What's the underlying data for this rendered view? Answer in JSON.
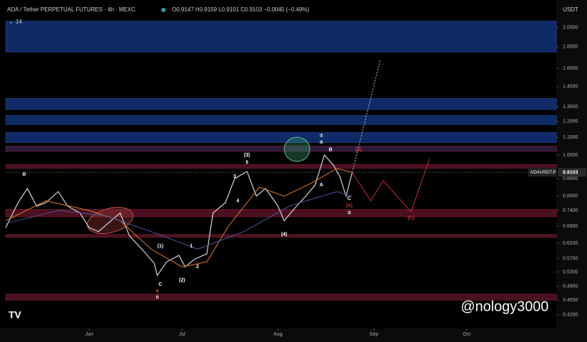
{
  "chart_data": {
    "type": "line",
    "title": "ADA / Tether PERPETUAL FUTURES · 4h · MEXC",
    "ohlc_text": "O0.9147 H0.9159 L0.9101 C0.9103 −0.0045 (−0.49%)",
    "indicator_count": "14",
    "currency": "USDT",
    "symbol": "ADAUSDT.P",
    "last_price": {
      "value": 0.9103,
      "label": "0.9103"
    },
    "watermark": "@nology3000",
    "log_scale": true,
    "xlim": [
      -27,
      151
    ],
    "xticks": [
      {
        "value": 0,
        "label": "Jun"
      },
      {
        "value": 30,
        "label": "Jul"
      },
      {
        "value": 61,
        "label": "Aug"
      },
      {
        "value": 92,
        "label": "Sep"
      },
      {
        "value": 122,
        "label": "Oct"
      }
    ],
    "ylim": [
      0.39,
      2.25
    ],
    "yticks": [
      {
        "value": 2.0,
        "label": "2.0000"
      },
      {
        "value": 1.8,
        "label": "1.8000"
      },
      {
        "value": 1.6,
        "label": "1.6000"
      },
      {
        "value": 1.45,
        "label": "1.4500"
      },
      {
        "value": 1.3,
        "label": "1.3000"
      },
      {
        "value": 1.2,
        "label": "1.2000"
      },
      {
        "value": 1.1,
        "label": "1.1000"
      },
      {
        "value": 1.0,
        "label": "1.0000"
      },
      {
        "value": 0.88,
        "label": "0.8800"
      },
      {
        "value": 0.8,
        "label": "0.8000"
      },
      {
        "value": 0.74,
        "label": "0.7400"
      },
      {
        "value": 0.68,
        "label": "0.6800"
      },
      {
        "value": 0.62,
        "label": "0.6200"
      },
      {
        "value": 0.57,
        "label": "0.5700"
      },
      {
        "value": 0.53,
        "label": "0.5300"
      },
      {
        "value": 0.49,
        "label": "0.4900"
      },
      {
        "value": 0.455,
        "label": "0.4550"
      },
      {
        "value": 0.42,
        "label": "0.4200"
      }
    ],
    "zones": [
      {
        "low": 1.75,
        "high": 2.07,
        "color": "#0f2a66"
      },
      {
        "low": 1.28,
        "high": 1.36,
        "color": "#0f2a66"
      },
      {
        "low": 1.18,
        "high": 1.24,
        "color": "#0f2a66"
      },
      {
        "low": 1.07,
        "high": 1.13,
        "color": "#0f2a66"
      },
      {
        "low": 1.02,
        "high": 1.05,
        "color": "#2a1a3a"
      },
      {
        "low": 0.93,
        "high": 0.95,
        "color": "#4a1020"
      },
      {
        "low": 0.715,
        "high": 0.745,
        "color": "#4a1020"
      },
      {
        "low": 0.64,
        "high": 0.65,
        "color": "#4a1020"
      },
      {
        "low": 0.455,
        "high": 0.47,
        "color": "#4a1020"
      }
    ],
    "series": [
      {
        "color": "#d8d8d8",
        "x": [
          -27,
          -23,
          -20,
          -17,
          -14,
          -10,
          -7,
          -3,
          0,
          3,
          8,
          10,
          13,
          17,
          21,
          22,
          25,
          29,
          31,
          34,
          38,
          40,
          44,
          47,
          51,
          54,
          57,
          61,
          63,
          67,
          70,
          73,
          76,
          79,
          81,
          83,
          85
        ],
        "values": [
          0.674,
          0.772,
          0.834,
          0.758,
          0.772,
          0.82,
          0.758,
          0.73,
          0.674,
          0.66,
          0.71,
          0.73,
          0.645,
          0.6,
          0.556,
          0.52,
          0.56,
          0.58,
          0.545,
          0.568,
          0.585,
          0.73,
          0.772,
          0.88,
          0.915,
          0.8,
          0.834,
          0.758,
          0.7,
          0.758,
          0.8,
          0.85,
          1.0,
          0.945,
          0.89,
          0.8,
          0.91
        ]
      },
      {
        "color": "#e07a30",
        "x": [
          -27,
          -14,
          0,
          10,
          20,
          30,
          38,
          45,
          55,
          63,
          72,
          80,
          85
        ],
        "values": [
          0.7,
          0.78,
          0.74,
          0.7,
          0.6,
          0.545,
          0.56,
          0.68,
          0.84,
          0.8,
          0.86,
          0.93,
          0.91
        ]
      },
      {
        "color": "#4a5a9a",
        "x": [
          -27,
          -10,
          5,
          20,
          35,
          50,
          65,
          80,
          85
        ],
        "values": [
          0.69,
          0.74,
          0.72,
          0.66,
          0.6,
          0.66,
          0.76,
          0.82,
          0.8
        ]
      },
      {
        "color": "#c0c0c0",
        "dash": true,
        "x": [
          85,
          94
        ],
        "values": [
          0.91,
          1.67
        ]
      },
      {
        "color": "#c0303a",
        "x": [
          85,
          91,
          95,
          104,
          110
        ],
        "values": [
          0.91,
          0.78,
          0.87,
          0.735,
          0.98
        ]
      }
    ],
    "annotations": [
      {
        "text": "B",
        "x": -21,
        "y": 0.9,
        "color": "#ffffff"
      },
      {
        "text": "(3)",
        "x": 51,
        "y": 1.0,
        "color": "#ffffff"
      },
      {
        "text": "5",
        "x": 51,
        "y": 0.96,
        "color": "#ffffff"
      },
      {
        "text": "3",
        "x": 47,
        "y": 0.89,
        "color": "#ffffff"
      },
      {
        "text": "4",
        "x": 48,
        "y": 0.78,
        "color": "#ffffff"
      },
      {
        "text": "(4)",
        "x": 63,
        "y": 0.65,
        "color": "#ffffff"
      },
      {
        "text": "(1)",
        "x": 23,
        "y": 0.61,
        "color": "#ffffff"
      },
      {
        "text": "1",
        "x": 33,
        "y": 0.61,
        "color": "#ffffff"
      },
      {
        "text": "(2)",
        "x": 30,
        "y": 0.507,
        "color": "#ffffff"
      },
      {
        "text": "2",
        "x": 35,
        "y": 0.545,
        "color": "#ffffff"
      },
      {
        "text": "C",
        "x": 23,
        "y": 0.495,
        "color": "#ffffff"
      },
      {
        "text": "v",
        "x": 22,
        "y": 0.478,
        "color": "#e07a30"
      },
      {
        "text": "ii",
        "x": 22,
        "y": 0.462,
        "color": "#ffffff"
      },
      {
        "text": "①",
        "x": 75,
        "y": 1.11,
        "color": "#ffffff"
      },
      {
        "text": "⑤",
        "x": 75,
        "y": 1.07,
        "color": "#ffffff"
      },
      {
        "text": "B",
        "x": 78,
        "y": 1.03,
        "color": "#ffffff"
      },
      {
        "text": "A",
        "x": 75,
        "y": 0.85,
        "color": "#ffffff"
      },
      {
        "text": "C",
        "x": 84,
        "y": 0.79,
        "color": "#ffffff"
      },
      {
        "text": "(A)",
        "x": 84,
        "y": 0.76,
        "color": "#c0303a"
      },
      {
        "text": "②",
        "x": 84,
        "y": 0.73,
        "color": "#ffffff"
      },
      {
        "text": "(B)",
        "x": 87,
        "y": 1.03,
        "color": "#c0303a"
      },
      {
        "text": "(C)",
        "x": 104,
        "y": 0.71,
        "color": "#c0303a"
      }
    ]
  }
}
